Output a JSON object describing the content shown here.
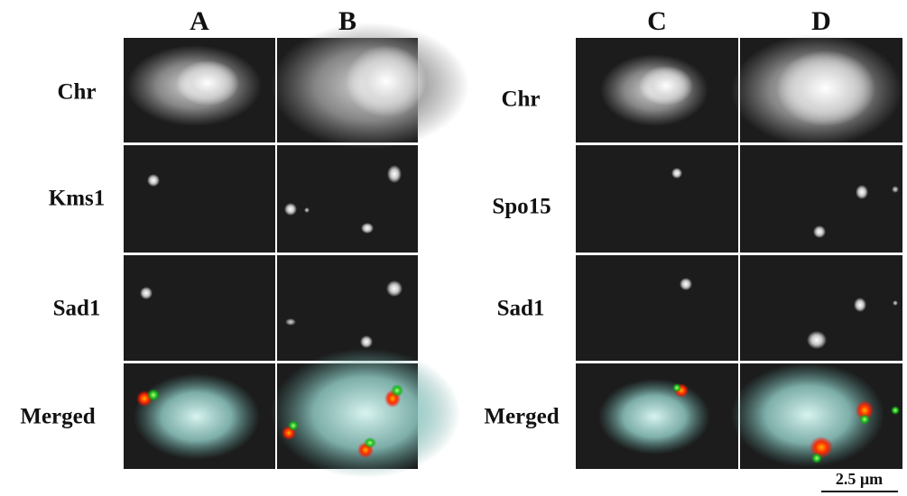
{
  "columns": [
    "A",
    "B",
    "C",
    "D"
  ],
  "left_rows": [
    "Chr",
    "Kms1",
    "Sad1",
    "Merged"
  ],
  "right_rows": [
    "Chr",
    "Spo15",
    "Sad1",
    "Merged"
  ],
  "scale_bar": "2.5 µm"
}
